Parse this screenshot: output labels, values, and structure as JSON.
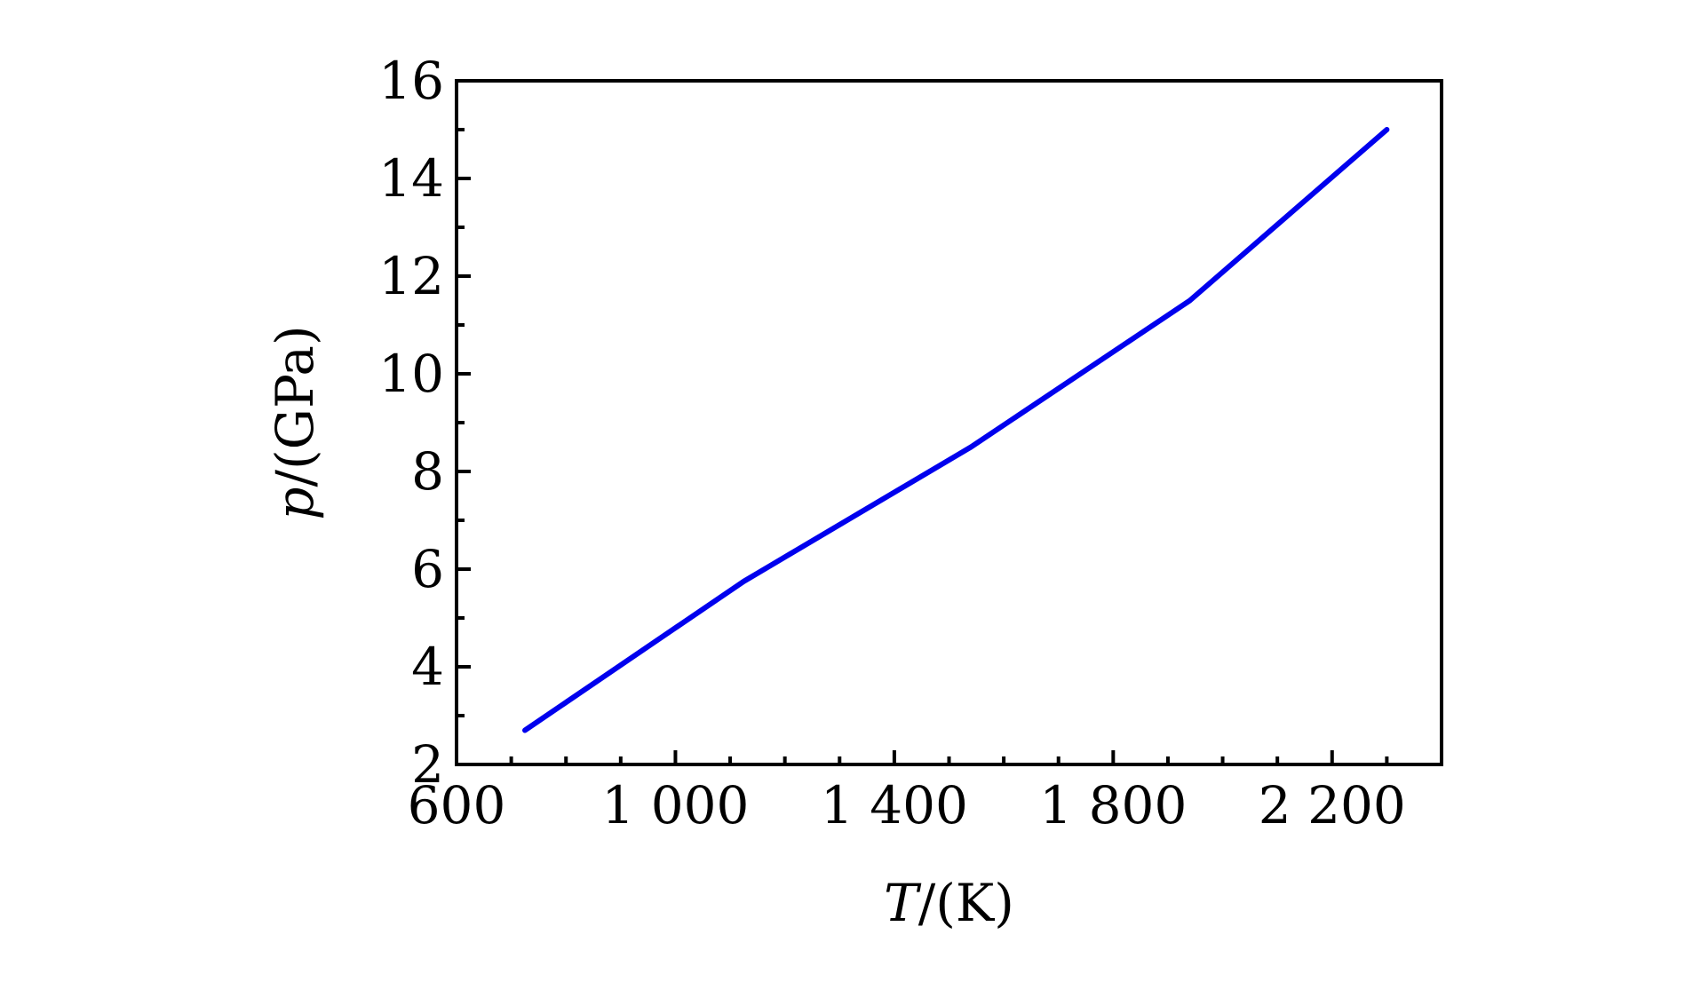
{
  "chart_data": {
    "type": "line",
    "xlabel_var": "T",
    "xlabel_unit": "/(K)",
    "ylabel_var": "p",
    "ylabel_unit": "/(GPa)",
    "xlim": [
      600,
      2400
    ],
    "ylim": [
      2,
      16
    ],
    "x_ticks": [
      600,
      1000,
      1400,
      1800,
      2200
    ],
    "x_tick_labels": [
      "600",
      "1 000",
      "1 400",
      "1 800",
      "2 200"
    ],
    "x_minor_step": 100,
    "y_ticks": [
      2,
      4,
      6,
      8,
      10,
      12,
      14,
      16
    ],
    "y_tick_labels": [
      "2",
      "4",
      "6",
      "8",
      "10",
      "12",
      "14",
      "16"
    ],
    "y_minor_step": 1,
    "grid": false,
    "series": [
      {
        "color": "#0000ee",
        "x": [
          725,
          1125,
          1540,
          1940,
          2300
        ],
        "y": [
          2.7,
          5.75,
          8.5,
          11.5,
          15.0
        ]
      }
    ]
  }
}
